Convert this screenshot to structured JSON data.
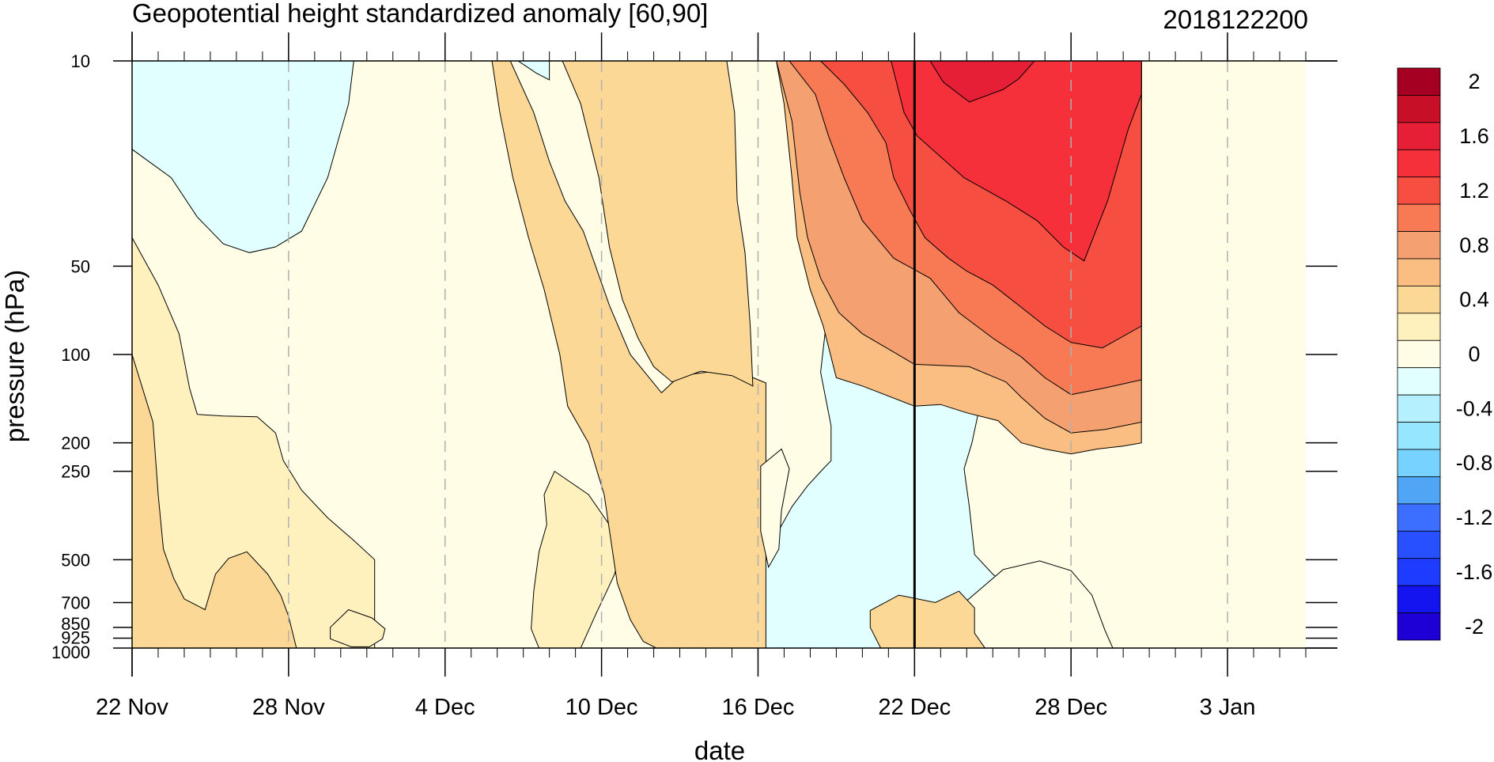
{
  "chart_data": {
    "type": "heatmap",
    "subtype": "filled-contour time-pressure cross section",
    "title": "Geopotential height standardized anomaly [60,90]",
    "right_title": "2018122200",
    "xlabel": "date",
    "ylabel": "pressure (hPa)",
    "x_start": "2018-11-22",
    "x_end": "2019-01-06",
    "x_tick_labels": [
      {
        "date": "2018-11-22",
        "label": "22 Nov"
      },
      {
        "date": "2018-11-28",
        "label": "28 Nov"
      },
      {
        "date": "2018-12-04",
        "label": "4 Dec"
      },
      {
        "date": "2018-12-10",
        "label": "10 Dec"
      },
      {
        "date": "2018-12-16",
        "label": "16 Dec"
      },
      {
        "date": "2018-12-22",
        "label": "22 Dec"
      },
      {
        "date": "2018-12-28",
        "label": "28 Dec"
      },
      {
        "date": "2019-01-03",
        "label": "3 Jan"
      }
    ],
    "vertical_marker_date": "2018-12-22",
    "y_scale": "log",
    "y_reversed": true,
    "ylim": [
      1000,
      10
    ],
    "y_ticks": [
      10,
      50,
      100,
      200,
      250,
      500,
      700,
      850,
      925,
      1000
    ],
    "grid": "dashed vertical lines at x tick dates",
    "colorbar": {
      "placement": "right",
      "levels": [
        -2,
        -1.8,
        -1.6,
        -1.4,
        -1.2,
        -1,
        -0.8,
        -0.6,
        -0.4,
        -0.2,
        0,
        0.2,
        0.4,
        0.6,
        0.8,
        1,
        1.2,
        1.4,
        1.6,
        1.8,
        2
      ],
      "labels": [
        "-2",
        "-1.6",
        "-1.2",
        "-0.8",
        "-0.4",
        "0",
        "0.4",
        "0.8",
        "1.2",
        "1.6",
        "2"
      ],
      "colors": [
        "#1e00d6",
        "#1414f0",
        "#1e3cff",
        "#2850ff",
        "#3c6eff",
        "#50a5f5",
        "#78d2ff",
        "#96e6ff",
        "#b4f0ff",
        "#e1ffff",
        "#fffde6",
        "#fff1be",
        "#fcd896",
        "#fabe82",
        "#f5a070",
        "#f77a55",
        "#f74e42",
        "#f5303a",
        "#e61e36",
        "#c80f28",
        "#a50021"
      ]
    },
    "regions": [
      {
        "value": -0.2,
        "points": [
          [
            0,
            10
          ],
          [
            8.5,
            10
          ],
          [
            8.3,
            14
          ],
          [
            7.5,
            25
          ],
          [
            6.5,
            38
          ],
          [
            5.5,
            43
          ],
          [
            4.5,
            45
          ],
          [
            3.5,
            42
          ],
          [
            2.5,
            34
          ],
          [
            1.5,
            25
          ],
          [
            0,
            20
          ]
        ]
      },
      {
        "value": -0.2,
        "points": [
          [
            14.8,
            10
          ],
          [
            16,
            10
          ],
          [
            16,
            11.6
          ],
          [
            15.5,
            11
          ]
        ]
      },
      {
        "value": -0.2,
        "points": [
          [
            20,
            1000
          ],
          [
            20.7,
            920
          ],
          [
            21.3,
            840
          ],
          [
            21.9,
            780
          ],
          [
            22.7,
            700
          ],
          [
            23.7,
            570
          ],
          [
            24.4,
            460
          ],
          [
            25.3,
            330
          ],
          [
            25.9,
            280
          ],
          [
            26.5,
            245
          ],
          [
            26.8,
            230
          ],
          [
            26.8,
            175
          ],
          [
            26.4,
            115
          ],
          [
            26.6,
            80
          ],
          [
            27.2,
            55
          ],
          [
            28,
            44
          ],
          [
            28.8,
            43
          ],
          [
            30,
            49
          ],
          [
            30.5,
            57
          ],
          [
            31,
            65
          ],
          [
            31.8,
            75
          ],
          [
            32.2,
            100
          ],
          [
            32.5,
            115
          ],
          [
            32.5,
            150
          ],
          [
            32.2,
            200
          ],
          [
            31.9,
            245
          ],
          [
            32.1,
            330
          ],
          [
            32.3,
            480
          ],
          [
            33,
            560
          ],
          [
            33.8,
            640
          ],
          [
            34.5,
            760
          ],
          [
            35.1,
            890
          ],
          [
            35.4,
            1000
          ]
        ]
      },
      {
        "value": 0.2,
        "points": [
          [
            0,
            40
          ],
          [
            1,
            58
          ],
          [
            1.8,
            85
          ],
          [
            2.2,
            130
          ],
          [
            2.5,
            160
          ],
          [
            3.5,
            162
          ],
          [
            4.8,
            163
          ],
          [
            5.5,
            185
          ],
          [
            5.8,
            230
          ],
          [
            6.5,
            290
          ],
          [
            7.5,
            360
          ],
          [
            8.5,
            430
          ],
          [
            9.3,
            500
          ],
          [
            9.3,
            1000
          ],
          [
            0,
            1000
          ]
        ]
      },
      {
        "value": 0.2,
        "points": [
          [
            16.2,
            250
          ],
          [
            17.5,
            300
          ],
          [
            18.3,
            380
          ],
          [
            18.8,
            440
          ],
          [
            18.5,
            560
          ],
          [
            18.2,
            640
          ],
          [
            17.8,
            760
          ],
          [
            17.2,
            1000
          ],
          [
            15.6,
            1000
          ],
          [
            15.3,
            860
          ],
          [
            15.4,
            640
          ],
          [
            15.6,
            470
          ],
          [
            15.9,
            380
          ],
          [
            15.8,
            300
          ]
        ]
      },
      {
        "value": 0.2,
        "points": [
          [
            8.3,
            740
          ],
          [
            9.2,
            790
          ],
          [
            9.7,
            860
          ],
          [
            9.6,
            930
          ],
          [
            9.1,
            990
          ],
          [
            8.4,
            990
          ],
          [
            7.6,
            930
          ],
          [
            7.6,
            850
          ]
        ]
      },
      {
        "value": 0.4,
        "points": [
          [
            0,
            100
          ],
          [
            0.8,
            170
          ],
          [
            1,
            300
          ],
          [
            1.2,
            460
          ],
          [
            1.6,
            580
          ],
          [
            2,
            680
          ],
          [
            2.8,
            740
          ],
          [
            3.2,
            560
          ],
          [
            3.7,
            495
          ],
          [
            4.4,
            470
          ],
          [
            5.2,
            560
          ],
          [
            5.7,
            660
          ],
          [
            6.0,
            780
          ],
          [
            6.3,
            1000
          ],
          [
            0,
            1000
          ]
        ]
      },
      {
        "value": 0.4,
        "points": [
          [
            11.4,
            10
          ],
          [
            14.5,
            10
          ],
          [
            15.4,
            15
          ],
          [
            16,
            22
          ],
          [
            16.6,
            30
          ],
          [
            17.3,
            38
          ],
          [
            18.3,
            68
          ],
          [
            19.1,
            100
          ],
          [
            20.3,
            135
          ],
          [
            21,
            118
          ],
          [
            23,
            112
          ],
          [
            24.3,
            125
          ],
          [
            24.3,
            1000
          ],
          [
            20.1,
            1000
          ],
          [
            19.6,
            950
          ],
          [
            19.1,
            800
          ],
          [
            18.6,
            600
          ],
          [
            18.1,
            300
          ],
          [
            17.5,
            200
          ],
          [
            16.7,
            150
          ],
          [
            16.4,
            100
          ],
          [
            15.8,
            60
          ],
          [
            15.2,
            40
          ],
          [
            14.6,
            25
          ],
          [
            14.1,
            15
          ],
          [
            13.8,
            10
          ]
        ]
      },
      {
        "value": 0.4,
        "points": [
          [
            16.5,
            10
          ],
          [
            22.8,
            10
          ],
          [
            23.1,
            15
          ],
          [
            23.2,
            30
          ],
          [
            23.5,
            45
          ],
          [
            23.7,
            80
          ],
          [
            23.8,
            128
          ],
          [
            23,
            118
          ],
          [
            21.8,
            114
          ],
          [
            20.7,
            124
          ],
          [
            20,
            110
          ],
          [
            19.4,
            88
          ],
          [
            18.8,
            65
          ],
          [
            18.3,
            43
          ],
          [
            17.9,
            25
          ],
          [
            17.2,
            14
          ]
        ]
      },
      {
        "value": 0,
        "points": [
          [
            24.1,
            240
          ],
          [
            24.9,
            210
          ],
          [
            25.2,
            245
          ],
          [
            24.9,
            340
          ],
          [
            24.8,
            460
          ],
          [
            24.4,
            530
          ],
          [
            24.1,
            400
          ]
        ]
      },
      {
        "value": 0,
        "points": [
          [
            31.2,
            1000
          ],
          [
            31.3,
            810
          ],
          [
            32,
            690
          ],
          [
            33.4,
            540
          ],
          [
            34.8,
            505
          ],
          [
            36,
            545
          ],
          [
            36.8,
            660
          ],
          [
            37.3,
            870
          ],
          [
            37.6,
            1000
          ]
        ]
      },
      {
        "value": 0.4,
        "points": [
          [
            28.7,
            1000
          ],
          [
            28.3,
            850
          ],
          [
            28.3,
            745
          ],
          [
            29.4,
            660
          ],
          [
            30.8,
            700
          ],
          [
            31.7,
            640
          ],
          [
            32.3,
            730
          ],
          [
            32.3,
            890
          ],
          [
            32.7,
            1000
          ]
        ]
      },
      {
        "value": 0.6,
        "points": [
          [
            24.2,
            10
          ],
          [
            24.7,
            10
          ],
          [
            25,
            14
          ],
          [
            25.3,
            25
          ],
          [
            25.5,
            40
          ],
          [
            26,
            60
          ],
          [
            26.5,
            80
          ],
          [
            27,
            120
          ],
          [
            28,
            128
          ],
          [
            30,
            150
          ],
          [
            31,
            148
          ],
          [
            32,
            158
          ],
          [
            33.2,
            168
          ],
          [
            34.1,
            200
          ],
          [
            35,
            210
          ],
          [
            36,
            218
          ],
          [
            37,
            210
          ],
          [
            38,
            205
          ],
          [
            38.7,
            200
          ],
          [
            38.7,
            10
          ]
        ]
      },
      {
        "value": 0.8,
        "points": [
          [
            24.7,
            10
          ],
          [
            38.7,
            10
          ],
          [
            38.7,
            170
          ],
          [
            37.3,
            180
          ],
          [
            36,
            185
          ],
          [
            35,
            165
          ],
          [
            34.1,
            140
          ],
          [
            33.5,
            124
          ],
          [
            32.1,
            110
          ],
          [
            30,
            108
          ],
          [
            28,
            85
          ],
          [
            27.1,
            72
          ],
          [
            26.4,
            55
          ],
          [
            25.9,
            40
          ],
          [
            25.6,
            28
          ],
          [
            25.3,
            16
          ]
        ]
      },
      {
        "value": 1.0,
        "points": [
          [
            25.2,
            10
          ],
          [
            38.7,
            10
          ],
          [
            38.7,
            122
          ],
          [
            37.3,
            130
          ],
          [
            36,
            137
          ],
          [
            35,
            120
          ],
          [
            34.1,
            102
          ],
          [
            33,
            88
          ],
          [
            31.7,
            72
          ],
          [
            30.6,
            55
          ],
          [
            29.2,
            47
          ],
          [
            28,
            35
          ],
          [
            27.3,
            25
          ],
          [
            26.7,
            18
          ],
          [
            26.2,
            13
          ]
        ]
      },
      {
        "value": 1.2,
        "points": [
          [
            26.4,
            10
          ],
          [
            38.7,
            10
          ],
          [
            38.7,
            80
          ],
          [
            37.2,
            95
          ],
          [
            36,
            91
          ],
          [
            35,
            80
          ],
          [
            34,
            68
          ],
          [
            33,
            58
          ],
          [
            32,
            52
          ],
          [
            31.3,
            47
          ],
          [
            30.4,
            40
          ],
          [
            29.8,
            32
          ],
          [
            29.2,
            25
          ],
          [
            28.9,
            19
          ],
          [
            28.2,
            15
          ],
          [
            27.3,
            12
          ]
        ]
      },
      {
        "value": 1.4,
        "points": [
          [
            29.1,
            10
          ],
          [
            38.7,
            10
          ],
          [
            38.7,
            13
          ],
          [
            38.2,
            17
          ],
          [
            37.4,
            30
          ],
          [
            36.5,
            48
          ],
          [
            35.7,
            43
          ],
          [
            34.7,
            35
          ],
          [
            33.5,
            30
          ],
          [
            31.9,
            25
          ],
          [
            30.1,
            18
          ],
          [
            29.6,
            15
          ]
        ]
      },
      {
        "value": 1.6,
        "points": [
          [
            30.6,
            10
          ],
          [
            34.6,
            10
          ],
          [
            34,
            11.5
          ],
          [
            33.4,
            12.5
          ],
          [
            32.1,
            13.8
          ],
          [
            31.1,
            11.8
          ]
        ]
      }
    ]
  }
}
